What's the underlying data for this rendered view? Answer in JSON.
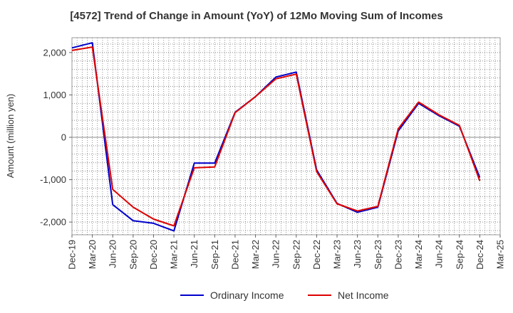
{
  "chart_data": {
    "type": "line",
    "title": "[4572]  Trend of Change in Amount (YoY) of 12Mo Moving Sum of Incomes",
    "xlabel": "",
    "ylabel": "Amount (million yen)",
    "categories": [
      "Dec-19",
      "Mar-20",
      "Jun-20",
      "Sep-20",
      "Dec-20",
      "Mar-21",
      "Jun-21",
      "Sep-21",
      "Dec-21",
      "Mar-22",
      "Jun-22",
      "Sep-22",
      "Dec-22",
      "Mar-23",
      "Jun-23",
      "Sep-23",
      "Dec-23",
      "Mar-24",
      "Jun-24",
      "Sep-24",
      "Dec-24",
      "Mar-25"
    ],
    "yticks": [
      -2000,
      -1000,
      0,
      1000,
      2000
    ],
    "ytick_labels": [
      "-2,000",
      "-1,000",
      "0",
      "1,000",
      "2,000"
    ],
    "ylim": [
      -2300,
      2350
    ],
    "grid": true,
    "legend_position": "bottom",
    "series": [
      {
        "name": "Ordinary Income",
        "color": "#0000cc",
        "values": [
          2110,
          2230,
          -1590,
          -1970,
          -2030,
          -2210,
          -610,
          -610,
          590,
          960,
          1420,
          1540,
          -770,
          -1560,
          -1770,
          -1650,
          150,
          800,
          510,
          260,
          -950,
          null
        ]
      },
      {
        "name": "Net Income",
        "color": "#dd0000",
        "values": [
          2050,
          2130,
          -1230,
          -1650,
          -1930,
          -2090,
          -720,
          -700,
          580,
          960,
          1380,
          1490,
          -810,
          -1570,
          -1740,
          -1630,
          200,
          830,
          530,
          280,
          -1030,
          null
        ]
      }
    ]
  }
}
